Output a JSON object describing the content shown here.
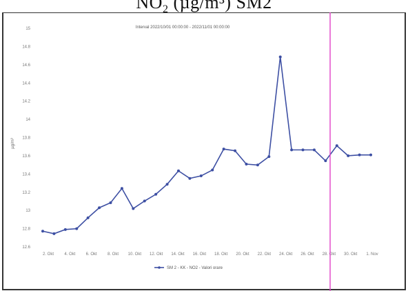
{
  "caption": {
    "text": "",
    "pollutant": "NO",
    "subscript": "2",
    "unit": "(µg/m³) SM2"
  },
  "chart_data": {
    "type": "line",
    "title": "Interval 2022/10/01 00:00:00 - 2022/11/01 00:00:00",
    "xlabel": "",
    "ylabel": "µg/m³",
    "x": [
      "2 Oct",
      "3 Oct",
      "4 Oct",
      "5 Oct",
      "6 Oct",
      "7 Oct",
      "8 Oct",
      "9 Oct",
      "10 Oct",
      "11 Oct",
      "12 Oct",
      "13 Oct",
      "14 Oct",
      "15 Oct",
      "16 Oct",
      "17 Oct",
      "18 Oct",
      "19 Oct",
      "20 Oct",
      "21 Oct",
      "22 Oct",
      "23 Oct",
      "24 Oct",
      "25 Oct",
      "26 Oct",
      "27 Oct",
      "28 Oct",
      "29 Oct",
      "30 Oct",
      "31 Oct"
    ],
    "x_tick_labels": [
      "2. Okt",
      "4. Okt",
      "6. Okt",
      "8. Okt",
      "10. Okt",
      "12. Okt",
      "14. Okt",
      "16. Okt",
      "18. Okt",
      "20. Okt",
      "22. Okt",
      "24. Okt",
      "26. Okt",
      "28. Okt",
      "30. Okt",
      "1. Nov"
    ],
    "y_tick_labels": [
      "12.6",
      "12.8",
      "13",
      "13.2",
      "13.4",
      "13.6",
      "13.8",
      "14",
      "14.2",
      "14.4",
      "14.6",
      "14.8",
      "15"
    ],
    "ylim": [
      12.5,
      15.1
    ],
    "grid": false,
    "legend_position": "bottom",
    "series": [
      {
        "name": "SM 2 - KK - NO2 - Valori orare",
        "color": "#3d4fa3",
        "values": [
          12.72,
          12.69,
          12.74,
          12.75,
          12.88,
          13.0,
          13.06,
          13.23,
          12.99,
          13.08,
          13.16,
          13.28,
          13.44,
          13.35,
          13.38,
          13.45,
          13.7,
          13.68,
          13.52,
          13.51,
          13.61,
          14.8,
          13.69,
          13.69,
          13.69,
          13.56,
          13.74,
          13.62,
          13.63,
          13.63
        ]
      }
    ]
  },
  "marker_line": {
    "color": "#e040c8"
  }
}
